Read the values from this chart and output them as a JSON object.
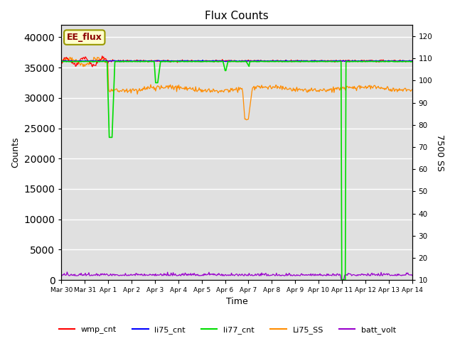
{
  "title": "Flux Counts",
  "ylabel_left": "Counts",
  "ylabel_right": "7500 SS",
  "xlabel": "Time",
  "ylim_left": [
    0,
    42000
  ],
  "ylim_right": [
    10,
    125
  ],
  "background_color": "#e0e0e0",
  "annotation_text": "EE_flux",
  "annotation_color": "#8b0000",
  "annotation_bg": "#ffffcc",
  "annotation_border": "#999900",
  "grid_color": "#ffffff",
  "wmp_color": "#ff0000",
  "li75_color": "#0000ff",
  "li77_color": "#00dd00",
  "Li75SS_color": "#ff8c00",
  "batt_color": "#9900cc",
  "tick_labels": [
    "Mar 30",
    "Mar 31",
    "Apr 1",
    "Apr 2",
    "Apr 3",
    "Apr 4",
    "Apr 5",
    "Apr 6",
    "Apr 7",
    "Apr 8",
    "Apr 9",
    "Apr 10",
    "Apr 11",
    "Apr 12",
    "Apr 13",
    "Apr 14"
  ],
  "right_ticks": [
    10,
    20,
    30,
    40,
    50,
    60,
    70,
    80,
    90,
    100,
    110,
    120
  ],
  "left_ticks": [
    0,
    5000,
    10000,
    15000,
    20000,
    25000,
    30000,
    35000,
    40000
  ]
}
